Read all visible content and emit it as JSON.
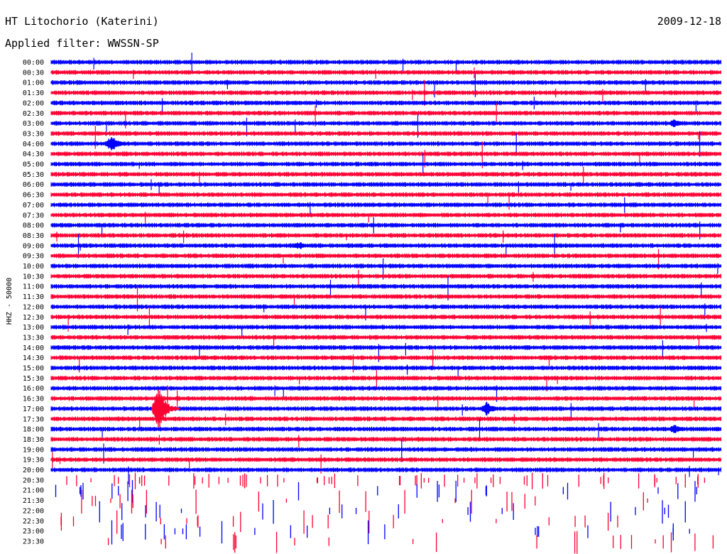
{
  "chart_data": {
    "type": "line",
    "title": "HT Litochorio (Katerini)",
    "date": "2009-12-18",
    "subtitle": "Applied filter: WWSSN-SP",
    "ylabel": "HHZ - 50000",
    "tick_labels": [
      "00:00",
      "00:30",
      "01:00",
      "01:30",
      "02:00",
      "02:30",
      "03:00",
      "03:30",
      "04:00",
      "04:30",
      "05:00",
      "05:30",
      "06:00",
      "06:30",
      "07:00",
      "07:30",
      "08:00",
      "08:30",
      "09:00",
      "09:30",
      "10:00",
      "10:30",
      "11:00",
      "11:30",
      "12:00",
      "12:30",
      "13:00",
      "13:30",
      "14:00",
      "14:30",
      "15:00",
      "15:30",
      "16:00",
      "16:30",
      "17:00",
      "17:30",
      "18:00",
      "18:30",
      "19:00",
      "19:30",
      "20:00",
      "20:30",
      "21:00",
      "21:30",
      "22:00",
      "22:30",
      "23:00",
      "23:30"
    ],
    "trace_colors": [
      "#0000ff",
      "#ff0033"
    ],
    "recorded_until": "20:30",
    "events": [
      {
        "row": "03:00",
        "position": 0.93,
        "amplitude": 0.7,
        "color": "#0000ff"
      },
      {
        "row": "04:00",
        "position": 0.09,
        "amplitude": 1.2,
        "color": "#0000ff"
      },
      {
        "row": "09:00",
        "position": 0.37,
        "amplitude": 0.6,
        "color": "#0000ff"
      },
      {
        "row": "17:00",
        "position": 0.16,
        "amplitude": 3.2,
        "color": "#ff0033"
      },
      {
        "row": "17:00",
        "position": 0.65,
        "amplitude": 1.0,
        "color": "#0000ff"
      },
      {
        "row": "18:00",
        "position": 0.93,
        "amplitude": 0.7,
        "color": "#0000ff"
      }
    ]
  }
}
